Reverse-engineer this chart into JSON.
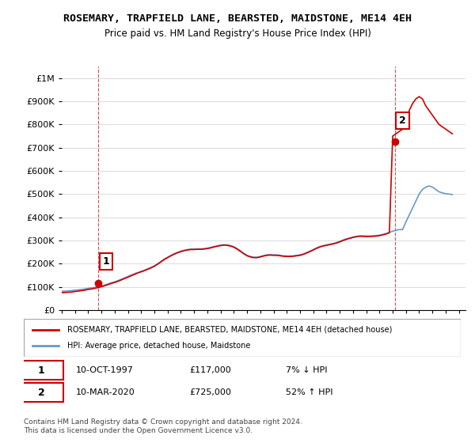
{
  "title": "ROSEMARY, TRAPFIELD LANE, BEARSTED, MAIDSTONE, ME14 4EH",
  "subtitle": "Price paid vs. HM Land Registry's House Price Index (HPI)",
  "legend_label_red": "ROSEMARY, TRAPFIELD LANE, BEARSTED, MAIDSTONE, ME14 4EH (detached house)",
  "legend_label_blue": "HPI: Average price, detached house, Maidstone",
  "annotation1_label": "1",
  "annotation1_date": "10-OCT-1997",
  "annotation1_price": "£117,000",
  "annotation1_hpi": "7% ↓ HPI",
  "annotation2_label": "2",
  "annotation2_date": "10-MAR-2020",
  "annotation2_price": "£725,000",
  "annotation2_hpi": "52% ↑ HPI",
  "footer": "Contains HM Land Registry data © Crown copyright and database right 2024.\nThis data is licensed under the Open Government Licence v3.0.",
  "ylim": [
    0,
    1050000
  ],
  "yticks": [
    0,
    100000,
    200000,
    300000,
    400000,
    500000,
    600000,
    700000,
    800000,
    900000,
    1000000
  ],
  "ytick_labels": [
    "£0",
    "£100K",
    "£200K",
    "£300K",
    "£400K",
    "£500K",
    "£600K",
    "£700K",
    "£800K",
    "£900K",
    "£1M"
  ],
  "xlim_start": 1995.0,
  "xlim_end": 2025.5,
  "xticks": [
    1995,
    1996,
    1997,
    1998,
    1999,
    2000,
    2001,
    2002,
    2003,
    2004,
    2005,
    2006,
    2007,
    2008,
    2009,
    2010,
    2011,
    2012,
    2013,
    2014,
    2015,
    2016,
    2017,
    2018,
    2019,
    2020,
    2021,
    2022,
    2023,
    2024,
    2025
  ],
  "red_color": "#cc0000",
  "blue_color": "#6699cc",
  "sale1_x": 1997.78,
  "sale1_y": 117000,
  "sale2_x": 2020.19,
  "sale2_y": 725000,
  "hpi_x": [
    1995.0,
    1995.25,
    1995.5,
    1995.75,
    1996.0,
    1996.25,
    1996.5,
    1996.75,
    1997.0,
    1997.25,
    1997.5,
    1997.75,
    1998.0,
    1998.25,
    1998.5,
    1998.75,
    1999.0,
    1999.25,
    1999.5,
    1999.75,
    2000.0,
    2000.25,
    2000.5,
    2000.75,
    2001.0,
    2001.25,
    2001.5,
    2001.75,
    2002.0,
    2002.25,
    2002.5,
    2002.75,
    2003.0,
    2003.25,
    2003.5,
    2003.75,
    2004.0,
    2004.25,
    2004.5,
    2004.75,
    2005.0,
    2005.25,
    2005.5,
    2005.75,
    2006.0,
    2006.25,
    2006.5,
    2006.75,
    2007.0,
    2007.25,
    2007.5,
    2007.75,
    2008.0,
    2008.25,
    2008.5,
    2008.75,
    2009.0,
    2009.25,
    2009.5,
    2009.75,
    2010.0,
    2010.25,
    2010.5,
    2010.75,
    2011.0,
    2011.25,
    2011.5,
    2011.75,
    2012.0,
    2012.25,
    2012.5,
    2012.75,
    2013.0,
    2013.25,
    2013.5,
    2013.75,
    2014.0,
    2014.25,
    2014.5,
    2014.75,
    2015.0,
    2015.25,
    2015.5,
    2015.75,
    2016.0,
    2016.25,
    2016.5,
    2016.75,
    2017.0,
    2017.25,
    2017.5,
    2017.75,
    2018.0,
    2018.25,
    2018.5,
    2018.75,
    2019.0,
    2019.25,
    2019.5,
    2019.75,
    2020.0,
    2020.25,
    2020.5,
    2020.75,
    2021.0,
    2021.25,
    2021.5,
    2021.75,
    2022.0,
    2022.25,
    2022.5,
    2022.75,
    2023.0,
    2023.25,
    2023.5,
    2023.75,
    2024.0,
    2024.25,
    2024.5
  ],
  "hpi_y": [
    81000,
    82000,
    83000,
    84000,
    86000,
    87000,
    89000,
    91000,
    94000,
    96000,
    98000,
    100000,
    104000,
    108000,
    113000,
    118000,
    122000,
    127000,
    133000,
    139000,
    145000,
    151000,
    157000,
    162000,
    167000,
    172000,
    178000,
    184000,
    191000,
    200000,
    210000,
    220000,
    228000,
    236000,
    243000,
    249000,
    254000,
    258000,
    261000,
    263000,
    263000,
    264000,
    264000,
    265000,
    267000,
    270000,
    274000,
    277000,
    280000,
    282000,
    281000,
    278000,
    273000,
    265000,
    255000,
    245000,
    236000,
    231000,
    228000,
    228000,
    231000,
    235000,
    238000,
    239000,
    238000,
    238000,
    236000,
    234000,
    233000,
    233000,
    234000,
    236000,
    238000,
    242000,
    248000,
    254000,
    261000,
    268000,
    274000,
    278000,
    281000,
    284000,
    287000,
    291000,
    296000,
    302000,
    307000,
    311000,
    315000,
    318000,
    320000,
    320000,
    319000,
    319000,
    320000,
    321000,
    323000,
    326000,
    330000,
    335000,
    340000,
    344000,
    347000,
    347000,
    380000,
    410000,
    440000,
    470000,
    500000,
    520000,
    530000,
    535000,
    530000,
    520000,
    510000,
    505000,
    502000,
    500000,
    498000
  ],
  "red_x": [
    1995.0,
    1995.25,
    1995.5,
    1995.75,
    1996.0,
    1996.25,
    1996.5,
    1996.75,
    1997.0,
    1997.25,
    1997.5,
    1997.75,
    1998.0,
    1998.25,
    1998.5,
    1998.75,
    1999.0,
    1999.25,
    1999.5,
    1999.75,
    2000.0,
    2000.25,
    2000.5,
    2000.75,
    2001.0,
    2001.25,
    2001.5,
    2001.75,
    2002.0,
    2002.25,
    2002.5,
    2002.75,
    2003.0,
    2003.25,
    2003.5,
    2003.75,
    2004.0,
    2004.25,
    2004.5,
    2004.75,
    2005.0,
    2005.25,
    2005.5,
    2005.75,
    2006.0,
    2006.25,
    2006.5,
    2006.75,
    2007.0,
    2007.25,
    2007.5,
    2007.75,
    2008.0,
    2008.25,
    2008.5,
    2008.75,
    2009.0,
    2009.25,
    2009.5,
    2009.75,
    2010.0,
    2010.25,
    2010.5,
    2010.75,
    2011.0,
    2011.25,
    2011.5,
    2011.75,
    2012.0,
    2012.25,
    2012.5,
    2012.75,
    2013.0,
    2013.25,
    2013.5,
    2013.75,
    2014.0,
    2014.25,
    2014.5,
    2014.75,
    2015.0,
    2015.25,
    2015.5,
    2015.75,
    2016.0,
    2016.25,
    2016.5,
    2016.75,
    2017.0,
    2017.25,
    2017.5,
    2017.75,
    2018.0,
    2018.25,
    2018.5,
    2018.75,
    2019.0,
    2019.25,
    2019.5,
    2019.75,
    2020.0,
    2020.25,
    2020.5,
    2020.75,
    2021.0,
    2021.25,
    2021.5,
    2021.75,
    2022.0,
    2022.25,
    2022.5,
    2022.75,
    2023.0,
    2023.25,
    2023.5,
    2023.75,
    2024.0,
    2024.25,
    2024.5
  ],
  "red_y": [
    75000,
    76000,
    77000,
    78000,
    80000,
    82000,
    84000,
    86000,
    89000,
    91000,
    94000,
    97000,
    101000,
    105000,
    110000,
    115000,
    119000,
    124000,
    130000,
    136000,
    142000,
    148000,
    154000,
    160000,
    165000,
    170000,
    176000,
    182000,
    189000,
    198000,
    208000,
    218000,
    226000,
    234000,
    241000,
    247000,
    252000,
    256000,
    259000,
    261000,
    261000,
    262000,
    262000,
    263000,
    265000,
    268000,
    272000,
    275000,
    278000,
    280000,
    279000,
    276000,
    271000,
    263000,
    253000,
    243000,
    234000,
    229000,
    226000,
    226000,
    229000,
    233000,
    236000,
    237000,
    236000,
    236000,
    234000,
    232000,
    231000,
    231000,
    232000,
    234000,
    236000,
    240000,
    246000,
    252000,
    259000,
    266000,
    272000,
    276000,
    279000,
    282000,
    285000,
    289000,
    294000,
    300000,
    305000,
    309000,
    313000,
    316000,
    318000,
    318000,
    317000,
    317000,
    318000,
    319000,
    321000,
    324000,
    328000,
    333000,
    750000,
    760000,
    770000,
    780000,
    820000,
    860000,
    890000,
    910000,
    920000,
    910000,
    880000,
    860000,
    840000,
    820000,
    800000,
    790000,
    780000,
    770000,
    760000
  ]
}
